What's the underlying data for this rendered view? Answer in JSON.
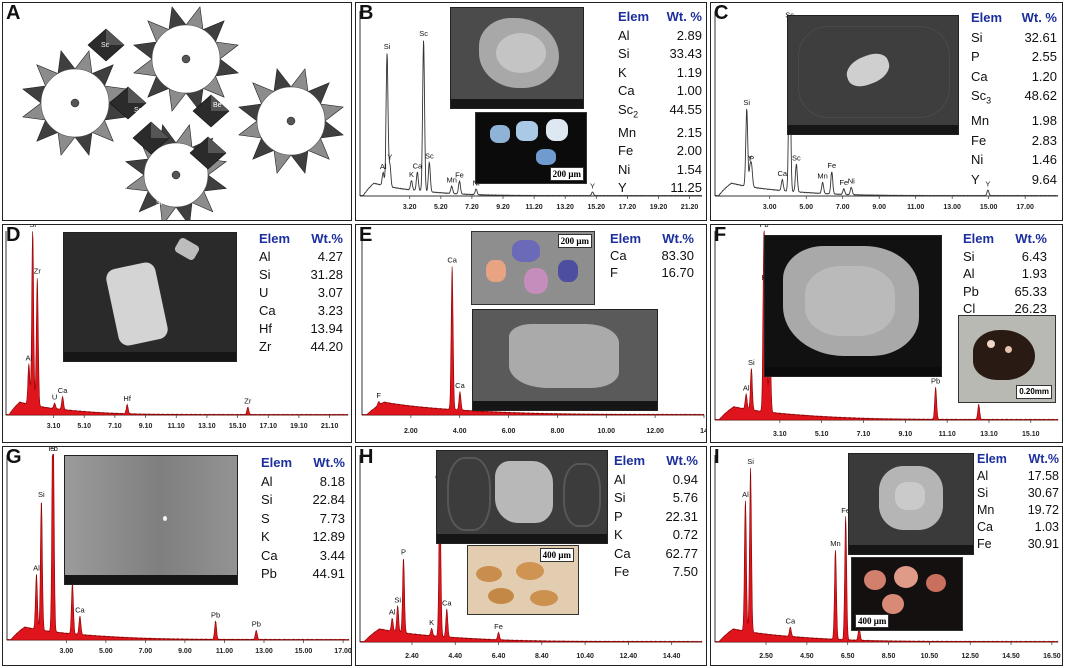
{
  "figure": {
    "panels": [
      {
        "letter": "A",
        "type": "crystal-structure",
        "labels": [
          "Sc",
          "Be",
          "Sc",
          "Si",
          "Be",
          "Sc",
          "Be",
          "Si",
          "Be",
          "Si",
          "Si",
          "Ni"
        ]
      },
      {
        "letter": "B",
        "scale_label": "200 μm",
        "table": {
          "head": [
            "Elem",
            "Wt. %"
          ],
          "rows": [
            [
              "Al",
              "2.89"
            ],
            [
              "Si",
              "33.43"
            ],
            [
              "K",
              "1.19"
            ],
            [
              "Ca",
              "1.00"
            ],
            [
              "Sc2",
              "44.55"
            ],
            [
              "Mn",
              "2.15"
            ],
            [
              "Fe",
              "2.00"
            ],
            [
              "Ni",
              "1.54"
            ],
            [
              "Y",
              "11.25"
            ]
          ]
        }
      },
      {
        "letter": "C",
        "table": {
          "head": [
            "Elem",
            "Wt. %"
          ],
          "rows": [
            [
              "Si",
              "32.61"
            ],
            [
              "P",
              "2.55"
            ],
            [
              "Ca",
              "1.20"
            ],
            [
              "Sc3",
              "48.62"
            ],
            [
              "Mn",
              "1.98"
            ],
            [
              "Fe",
              "2.83"
            ],
            [
              "Ni",
              "1.46"
            ],
            [
              "Y",
              "9.64"
            ]
          ]
        }
      },
      {
        "letter": "D",
        "table": {
          "head": [
            "Elem",
            "Wt.%"
          ],
          "rows": [
            [
              "Al",
              "4.27"
            ],
            [
              "Si",
              "31.28"
            ],
            [
              "U",
              "3.07"
            ],
            [
              "Ca",
              "3.23"
            ],
            [
              "Hf",
              "13.94"
            ],
            [
              "Zr",
              "44.20"
            ]
          ]
        }
      },
      {
        "letter": "E",
        "scale_label": "200 μm",
        "table": {
          "head": [
            "Elem",
            "Wt.%"
          ],
          "rows": [
            [
              "Ca",
              "83.30"
            ],
            [
              "F",
              "16.70"
            ]
          ]
        }
      },
      {
        "letter": "F",
        "scale_label": "0.20mm",
        "table": {
          "head": [
            "Elem",
            "Wt.%"
          ],
          "rows": [
            [
              "Si",
              "6.43"
            ],
            [
              "Al",
              "1.93"
            ],
            [
              "Pb",
              "65.33"
            ],
            [
              "Cl",
              "26.23"
            ]
          ]
        }
      },
      {
        "letter": "G",
        "table": {
          "head": [
            "Elem",
            "Wt.%"
          ],
          "rows": [
            [
              "Al",
              "8.18"
            ],
            [
              "Si",
              "22.84"
            ],
            [
              "S",
              "7.73"
            ],
            [
              "K",
              "12.89"
            ],
            [
              "Ca",
              "3.44"
            ],
            [
              "Pb",
              "44.91"
            ]
          ]
        }
      },
      {
        "letter": "H",
        "scale_label": "400 μm",
        "table": {
          "head": [
            "Elem",
            "Wt.%"
          ],
          "rows": [
            [
              "Al",
              "0.94"
            ],
            [
              "Si",
              "5.76"
            ],
            [
              "P",
              "22.31"
            ],
            [
              "K",
              "0.72"
            ],
            [
              "Ca",
              "62.77"
            ],
            [
              "Fe",
              "7.50"
            ]
          ]
        }
      },
      {
        "letter": "I",
        "scale_label": "400 μm",
        "table": {
          "head": [
            "Elem",
            "Wt.%"
          ],
          "rows": [
            [
              "Al",
              "17.58"
            ],
            [
              "Si",
              "30.67"
            ],
            [
              "Mn",
              "19.72"
            ],
            [
              "Ca",
              "1.03"
            ],
            [
              "Fe",
              "30.91"
            ]
          ]
        }
      }
    ]
  },
  "chart_data": [
    {
      "panel": "B",
      "type": "line",
      "style": "line",
      "xlim": [
        0,
        22
      ],
      "ticks": [
        "3.20",
        "5.20",
        "7.20",
        "9.20",
        "11.20",
        "13.20",
        "15.20",
        "17.20",
        "19.20",
        "21.20"
      ],
      "peaks": [
        {
          "el": "Al",
          "x": 1.49,
          "h": 0.07
        },
        {
          "el": "Si",
          "x": 1.74,
          "h": 0.72
        },
        {
          "el": "Y",
          "x": 1.92,
          "h": 0.12
        },
        {
          "el": "K",
          "x": 3.31,
          "h": 0.05
        },
        {
          "el": "Ca",
          "x": 3.69,
          "h": 0.1
        },
        {
          "el": "Sc",
          "x": 4.09,
          "h": 0.82
        },
        {
          "el": "Sc",
          "x": 4.46,
          "h": 0.16
        },
        {
          "el": "Mn",
          "x": 5.9,
          "h": 0.04
        },
        {
          "el": "Fe",
          "x": 6.4,
          "h": 0.07
        },
        {
          "el": "Ni",
          "x": 7.47,
          "h": 0.03
        },
        {
          "el": "Y",
          "x": 14.96,
          "h": 0.02
        }
      ]
    },
    {
      "panel": "C",
      "type": "line",
      "style": "line",
      "xlim": [
        0,
        18.8
      ],
      "ticks": [
        "3.00",
        "5.00",
        "7.00",
        "9.00",
        "11.00",
        "13.00",
        "15.00",
        "17.00"
      ],
      "peaks": [
        {
          "el": "Si",
          "x": 1.74,
          "h": 0.42
        },
        {
          "el": "Y",
          "x": 1.92,
          "h": 0.1
        },
        {
          "el": "P",
          "x": 2.01,
          "h": 0.1
        },
        {
          "el": "Ca",
          "x": 3.69,
          "h": 0.06
        },
        {
          "el": "Sc",
          "x": 4.09,
          "h": 0.92
        },
        {
          "el": "Sc",
          "x": 4.46,
          "h": 0.15
        },
        {
          "el": "Mn",
          "x": 5.9,
          "h": 0.06
        },
        {
          "el": "Fe",
          "x": 6.4,
          "h": 0.12
        },
        {
          "el": "Fe",
          "x": 7.06,
          "h": 0.03
        },
        {
          "el": "Ni",
          "x": 7.47,
          "h": 0.04
        },
        {
          "el": "Y",
          "x": 14.96,
          "h": 0.03
        }
      ]
    },
    {
      "panel": "D",
      "type": "area",
      "style": "area",
      "xlim": [
        0,
        22.3
      ],
      "ticks": [
        "3.10",
        "5.10",
        "7.10",
        "9.10",
        "11.10",
        "13.10",
        "15.10",
        "17.10",
        "19.10",
        "21.10"
      ],
      "peaks": [
        {
          "el": "Al",
          "x": 1.49,
          "h": 0.22
        },
        {
          "el": "Si",
          "x": 1.74,
          "h": 0.95
        },
        {
          "el": "Zr",
          "x": 2.04,
          "h": 0.7
        },
        {
          "el": "Ca",
          "x": 3.69,
          "h": 0.07
        },
        {
          "el": "U",
          "x": 3.17,
          "h": 0.03
        },
        {
          "el": "Hf",
          "x": 7.9,
          "h": 0.05
        },
        {
          "el": "Zr",
          "x": 15.77,
          "h": 0.04
        }
      ]
    },
    {
      "panel": "E",
      "type": "area",
      "style": "area",
      "xlim": [
        0,
        14
      ],
      "ticks": [
        "2.00",
        "4.00",
        "6.00",
        "8.00",
        "10.00",
        "12.00",
        "14"
      ],
      "peaks": [
        {
          "el": "F",
          "x": 0.68,
          "h": 0.02
        },
        {
          "el": "Ca",
          "x": 3.69,
          "h": 0.78
        },
        {
          "el": "Ca",
          "x": 4.01,
          "h": 0.1
        }
      ]
    },
    {
      "panel": "F",
      "type": "area",
      "style": "area",
      "xlim": [
        0,
        16.4
      ],
      "ticks": [
        "3.10",
        "5.10",
        "7.10",
        "9.10",
        "11.10",
        "13.10",
        "15.10"
      ],
      "peaks": [
        {
          "el": "Al",
          "x": 1.49,
          "h": 0.08
        },
        {
          "el": "Si",
          "x": 1.74,
          "h": 0.22
        },
        {
          "el": "Pb",
          "x": 2.34,
          "h": 0.92
        },
        {
          "el": "Cl",
          "x": 2.62,
          "h": 0.45
        },
        {
          "el": "Pb",
          "x": 2.44,
          "h": 0.6
        },
        {
          "el": "Pb",
          "x": 10.55,
          "h": 0.17
        },
        {
          "el": "Pb",
          "x": 12.61,
          "h": 0.08
        }
      ]
    },
    {
      "panel": "G",
      "type": "area",
      "style": "area",
      "xlim": [
        0,
        17.3
      ],
      "ticks": [
        "3.00",
        "5.00",
        "7.00",
        "9.00",
        "11.00",
        "13.00",
        "15.00",
        "17.00"
      ],
      "peaks": [
        {
          "el": "Al",
          "x": 1.49,
          "h": 0.3
        },
        {
          "el": "Si",
          "x": 1.74,
          "h": 0.7
        },
        {
          "el": "Pb",
          "x": 2.34,
          "h": 0.75
        },
        {
          "el": "S",
          "x": 2.31,
          "h": 0.6
        },
        {
          "el": "K",
          "x": 3.31,
          "h": 0.28
        },
        {
          "el": "Ca",
          "x": 3.69,
          "h": 0.1
        },
        {
          "el": "Pb",
          "x": 10.55,
          "h": 0.1
        },
        {
          "el": "Pb",
          "x": 12.61,
          "h": 0.05
        }
      ]
    },
    {
      "panel": "H",
      "type": "area",
      "style": "area",
      "xlim": [
        0,
        15.8
      ],
      "ticks": [
        "2.40",
        "4.40",
        "6.40",
        "8.40",
        "10.40",
        "12.40",
        "14.40"
      ],
      "peaks": [
        {
          "el": "Al",
          "x": 1.49,
          "h": 0.07
        },
        {
          "el": "Si",
          "x": 1.74,
          "h": 0.14
        },
        {
          "el": "P",
          "x": 2.01,
          "h": 0.4
        },
        {
          "el": "K",
          "x": 3.31,
          "h": 0.04
        },
        {
          "el": "Ca",
          "x": 3.69,
          "h": 0.82
        },
        {
          "el": "Ca",
          "x": 4.01,
          "h": 0.15
        },
        {
          "el": "Fe",
          "x": 6.4,
          "h": 0.04
        }
      ]
    },
    {
      "panel": "I",
      "type": "area",
      "style": "area",
      "xlim": [
        0,
        16.8
      ],
      "ticks": [
        "2.50",
        "4.50",
        "6.50",
        "8.50",
        "10.50",
        "12.50",
        "14.50",
        "16.50"
      ],
      "peaks": [
        {
          "el": "Al",
          "x": 1.49,
          "h": 0.7
        },
        {
          "el": "Si",
          "x": 1.74,
          "h": 0.88
        },
        {
          "el": "Ca",
          "x": 3.69,
          "h": 0.05
        },
        {
          "el": "Mn",
          "x": 5.9,
          "h": 0.48
        },
        {
          "el": "Fe",
          "x": 6.4,
          "h": 0.66
        },
        {
          "el": "Fe",
          "x": 7.06,
          "h": 0.07
        }
      ]
    }
  ]
}
